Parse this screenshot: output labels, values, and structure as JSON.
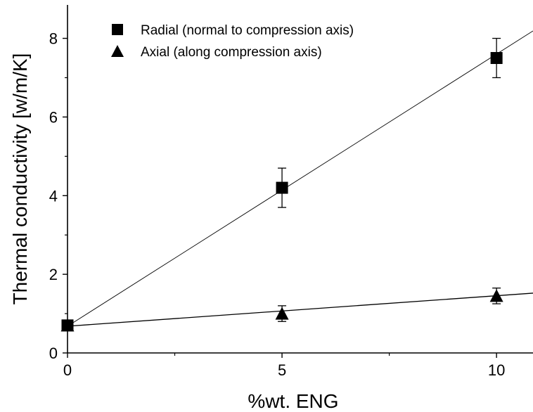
{
  "chart_data": {
    "type": "scatter",
    "xlabel": "%wt. ENG",
    "ylabel": "Thermal conductivity [w/m/K]",
    "xlim": [
      0,
      10.85
    ],
    "ylim": [
      0,
      8.85
    ],
    "x_ticks": [
      0,
      5,
      10
    ],
    "y_ticks": [
      0,
      2,
      4,
      6,
      8
    ],
    "legend_position": "top-left",
    "grid": false,
    "series": [
      {
        "name": "Radial (normal to compression axis)",
        "marker": "square",
        "color": "#000000",
        "points": [
          {
            "x": 0,
            "y": 0.7,
            "err": 0
          },
          {
            "x": 5,
            "y": 4.2,
            "err": 0.5
          },
          {
            "x": 10,
            "y": 7.5,
            "err": 0.5
          }
        ],
        "fit_line": {
          "intercept": 0.68,
          "slope": 0.692
        }
      },
      {
        "name": "Axial (along compression axis)",
        "marker": "triangle",
        "color": "#000000",
        "points": [
          {
            "x": 0,
            "y": 0.7,
            "err": 0
          },
          {
            "x": 5,
            "y": 1.0,
            "err": 0.2
          },
          {
            "x": 10,
            "y": 1.45,
            "err": 0.2
          }
        ],
        "fit_line": {
          "intercept": 0.68,
          "slope": 0.0775
        }
      }
    ]
  }
}
